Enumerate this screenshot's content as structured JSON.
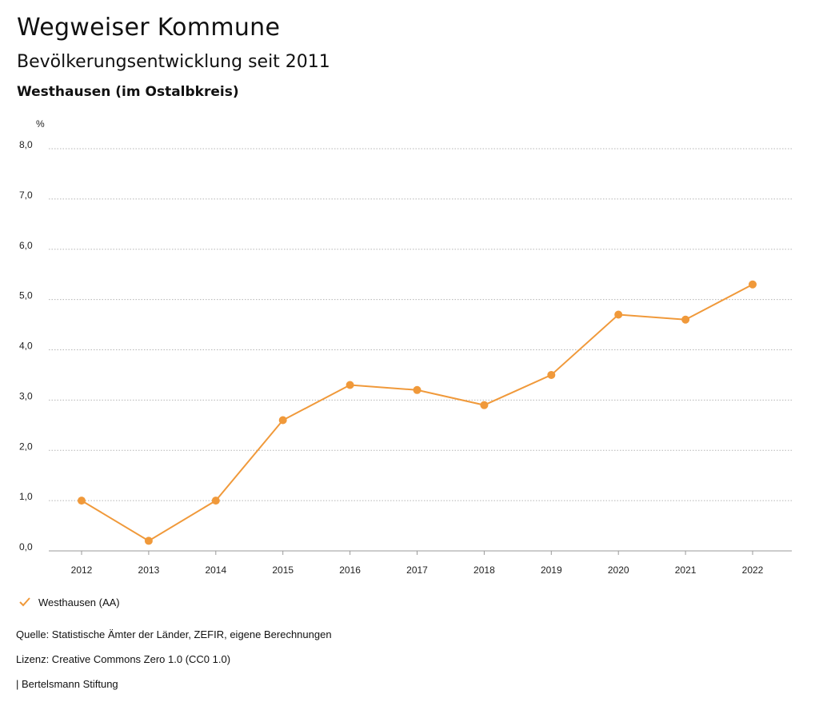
{
  "header": {
    "title": "Wegweiser Kommune",
    "subtitle": "Bevölkerungsentwicklung seit 2011",
    "region": "Westhausen (im Ostalbkreis)"
  },
  "chart_data": {
    "type": "line",
    "x": [
      "2012",
      "2013",
      "2014",
      "2015",
      "2016",
      "2017",
      "2018",
      "2019",
      "2020",
      "2021",
      "2022"
    ],
    "series": [
      {
        "name": "Westhausen (AA)",
        "values": [
          1.0,
          0.2,
          1.0,
          2.6,
          3.3,
          3.2,
          2.9,
          3.5,
          4.7,
          4.6,
          5.3
        ],
        "color": "#f0993a"
      }
    ],
    "yunit": "%",
    "ylim": [
      0,
      8
    ],
    "yticks": [
      "0,0",
      "1,0",
      "2,0",
      "3,0",
      "4,0",
      "5,0",
      "6,0",
      "7,0",
      "8,0"
    ],
    "grid": true,
    "legend": "bottom-left"
  },
  "legend": {
    "label": "Westhausen (AA)",
    "icon": "check-icon"
  },
  "footer": {
    "source": "Quelle: Statistische Ämter der Länder, ZEFIR, eigene Berechnungen",
    "license": "Lizenz: Creative Commons Zero 1.0 (CC0 1.0)",
    "publisher": "| Bertelsmann Stiftung"
  }
}
